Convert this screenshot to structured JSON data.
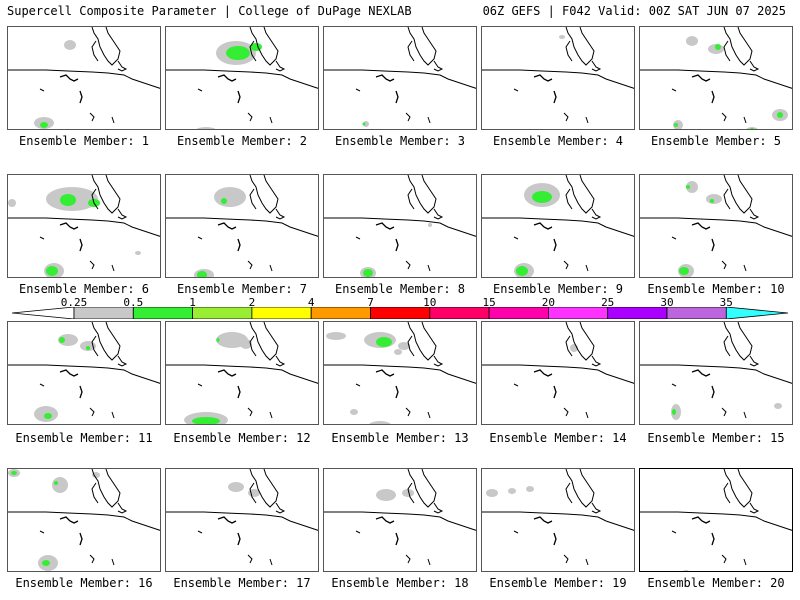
{
  "header": {
    "left": "Supercell Composite Parameter | College of DuPage NEXLAB",
    "right": "06Z GEFS | F042 Valid: 00Z SAT JUN 07 2025"
  },
  "legend": {
    "labels": [
      "0.25",
      "0.5",
      "1",
      "2",
      "4",
      "7",
      "10",
      "15",
      "20",
      "25",
      "30",
      "35"
    ],
    "colors": [
      "#c8c8c8",
      "#33ee33",
      "#99ee33",
      "#ffff00",
      "#ff9900",
      "#ff0000",
      "#ff0066",
      "#ff00aa",
      "#ff33ff",
      "#aa00ff",
      "#bb66dd",
      "#33ffff"
    ]
  },
  "members": [
    {
      "label": "Ensemble Member: 1"
    },
    {
      "label": "Ensemble Member: 2"
    },
    {
      "label": "Ensemble Member: 3"
    },
    {
      "label": "Ensemble Member: 4"
    },
    {
      "label": "Ensemble Member: 5"
    },
    {
      "label": "Ensemble Member: 6"
    },
    {
      "label": "Ensemble Member: 7"
    },
    {
      "label": "Ensemble Member: 8"
    },
    {
      "label": "Ensemble Member: 9"
    },
    {
      "label": "Ensemble Member: 10"
    },
    {
      "label": "Ensemble Member: 11"
    },
    {
      "label": "Ensemble Member: 12"
    },
    {
      "label": "Ensemble Member: 13"
    },
    {
      "label": "Ensemble Member: 14"
    },
    {
      "label": "Ensemble Member: 15"
    },
    {
      "label": "Ensemble Member: 16"
    },
    {
      "label": "Ensemble Member: 17"
    },
    {
      "label": "Ensemble Member: 18"
    },
    {
      "label": "Ensemble Member: 19"
    },
    {
      "label": "Ensemble Member: 20"
    }
  ]
}
